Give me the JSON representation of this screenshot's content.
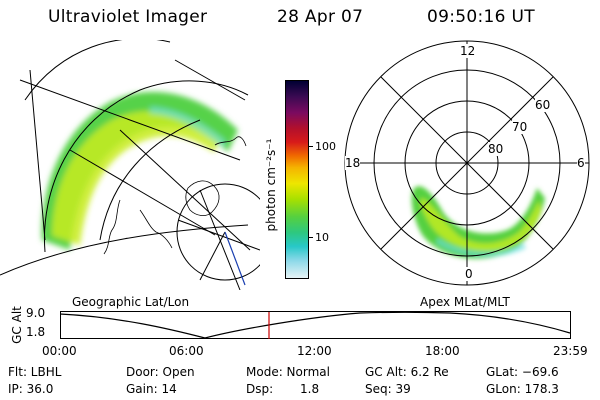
{
  "header": {
    "instrument": "Ultraviolet Imager",
    "date": "28 Apr 07",
    "time": "09:50:16 UT"
  },
  "colorbar": {
    "unit_label": "photon cm⁻²s⁻¹",
    "ticks": [
      "100",
      "10"
    ],
    "colors": [
      "#000033",
      "#3b0a52",
      "#7a0a60",
      "#b2102c",
      "#d71a1a",
      "#f06a00",
      "#f5b400",
      "#eee600",
      "#a8e000",
      "#55d040",
      "#2dc880",
      "#28c8c8",
      "#8ad8e8",
      "#e6f3f6"
    ]
  },
  "left_panel": {
    "caption": "Geographic Lat/Lon"
  },
  "right_panel": {
    "caption": "Apex MLat/MLT",
    "mlt_labels": {
      "top": "12",
      "left": "18",
      "right": "6",
      "bottom": "0"
    },
    "lat_labels": [
      "60",
      "70",
      "80"
    ]
  },
  "altitude_plot": {
    "ylabel": "GC Alt",
    "y_ticks": [
      "9.0",
      "1.8"
    ],
    "x_ticks": [
      "00:00",
      "06:00",
      "12:00",
      "18:00",
      "23:59"
    ],
    "current_time_marker": "09:50",
    "marker_color": "#cc0000"
  },
  "footer": {
    "flt": "Flt: LBHL",
    "ip": "IP: 36.0",
    "door": "Door: Open",
    "gain": "Gain: 14",
    "mode": "Mode: Normal",
    "dsp_label": "Dsp:",
    "dsp_value": "1.8",
    "gc_alt": "GC Alt: 6.2 Re",
    "seq": "Seq: 39",
    "glat": "GLat: −69.6",
    "glon": "GLon: 178.3"
  }
}
